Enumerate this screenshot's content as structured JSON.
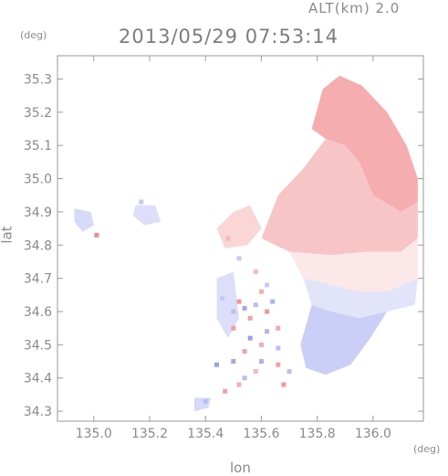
{
  "header": {
    "altitude_label": "ALT(km) 2.0",
    "datetime": "2013/05/29 07:53:14"
  },
  "chart_data": {
    "type": "heatmap",
    "title": "2013/05/29 07:53:14",
    "subtitle": "ALT(km) 2.0",
    "xlabel": "lon",
    "ylabel": "lat",
    "x_unit": "(deg)",
    "y_unit": "(deg)",
    "xlim": [
      134.87,
      136.18
    ],
    "ylim": [
      34.27,
      35.37
    ],
    "x_ticks": [
      135.0,
      135.2,
      135.4,
      135.6,
      135.8,
      136.0
    ],
    "x_tick_labels": [
      "135.0",
      "135.2",
      "135.4",
      "135.6",
      "135.8",
      "136.0"
    ],
    "y_ticks": [
      34.3,
      34.4,
      34.5,
      34.6,
      34.7,
      34.8,
      34.9,
      35.0,
      35.1,
      35.2,
      35.3
    ],
    "y_tick_labels": [
      "34.3",
      "34.4",
      "34.5",
      "34.6",
      "34.7",
      "34.8",
      "34.9",
      "35.0",
      "35.1",
      "35.2",
      "35.3"
    ],
    "grid": false,
    "colors": {
      "toward": "#f08a8e",
      "away": "#8c92ea",
      "frame": "#9a9a9a"
    },
    "regions": [
      {
        "sign": "positive",
        "intensity": 0.7,
        "polygon": [
          [
            135.78,
            35.15
          ],
          [
            135.82,
            35.27
          ],
          [
            135.88,
            35.31
          ],
          [
            135.96,
            35.28
          ],
          [
            136.05,
            35.2
          ],
          [
            136.12,
            35.1
          ],
          [
            136.16,
            35.0
          ],
          [
            136.16,
            34.93
          ],
          [
            136.1,
            34.9
          ],
          [
            136.0,
            34.95
          ],
          [
            135.95,
            35.05
          ],
          [
            135.9,
            35.1
          ],
          [
            135.83,
            35.12
          ]
        ]
      },
      {
        "sign": "positive",
        "intensity": 0.5,
        "polygon": [
          [
            135.6,
            34.82
          ],
          [
            135.66,
            34.95
          ],
          [
            135.75,
            35.03
          ],
          [
            135.83,
            35.12
          ],
          [
            135.9,
            35.1
          ],
          [
            135.95,
            35.05
          ],
          [
            136.0,
            34.95
          ],
          [
            136.1,
            34.9
          ],
          [
            136.16,
            34.93
          ],
          [
            136.16,
            34.82
          ],
          [
            136.1,
            34.78
          ],
          [
            135.98,
            34.78
          ],
          [
            135.85,
            34.77
          ],
          [
            135.7,
            34.78
          ]
        ]
      },
      {
        "sign": "positive",
        "intensity": 0.2,
        "polygon": [
          [
            135.7,
            34.78
          ],
          [
            135.85,
            34.77
          ],
          [
            135.98,
            34.78
          ],
          [
            136.1,
            34.78
          ],
          [
            136.16,
            34.82
          ],
          [
            136.16,
            34.7
          ],
          [
            136.05,
            34.66
          ],
          [
            135.95,
            34.66
          ],
          [
            135.85,
            34.68
          ],
          [
            135.75,
            34.7
          ]
        ]
      },
      {
        "sign": "negative",
        "intensity": 0.25,
        "polygon": [
          [
            135.75,
            34.7
          ],
          [
            135.85,
            34.68
          ],
          [
            135.95,
            34.66
          ],
          [
            136.05,
            34.66
          ],
          [
            136.16,
            34.7
          ],
          [
            136.15,
            34.62
          ],
          [
            136.05,
            34.6
          ],
          [
            135.95,
            34.58
          ],
          [
            135.85,
            34.6
          ],
          [
            135.78,
            34.62
          ]
        ]
      },
      {
        "sign": "negative",
        "intensity": 0.45,
        "polygon": [
          [
            135.78,
            34.62
          ],
          [
            135.85,
            34.6
          ],
          [
            135.95,
            34.58
          ],
          [
            136.05,
            34.6
          ],
          [
            135.99,
            34.52
          ],
          [
            135.92,
            34.44
          ],
          [
            135.83,
            34.41
          ],
          [
            135.76,
            34.43
          ],
          [
            135.74,
            34.5
          ]
        ]
      },
      {
        "sign": "positive",
        "intensity": 0.35,
        "polygon": [
          [
            135.44,
            34.85
          ],
          [
            135.5,
            34.9
          ],
          [
            135.56,
            34.92
          ],
          [
            135.6,
            34.85
          ],
          [
            135.55,
            34.8
          ],
          [
            135.47,
            34.79
          ]
        ]
      },
      {
        "sign": "negative",
        "intensity": 0.35,
        "polygon": [
          [
            134.93,
            34.91
          ],
          [
            134.99,
            34.9
          ],
          [
            135.0,
            34.86
          ],
          [
            134.96,
            34.84
          ],
          [
            134.93,
            34.87
          ]
        ]
      },
      {
        "sign": "negative",
        "intensity": 0.3,
        "polygon": [
          [
            135.15,
            34.92
          ],
          [
            135.22,
            34.92
          ],
          [
            135.24,
            34.87
          ],
          [
            135.18,
            34.86
          ],
          [
            135.14,
            34.89
          ]
        ]
      },
      {
        "sign": "negative",
        "intensity": 0.35,
        "polygon": [
          [
            135.36,
            34.34
          ],
          [
            135.42,
            34.34
          ],
          [
            135.41,
            34.31
          ],
          [
            135.36,
            34.3
          ]
        ]
      },
      {
        "sign": "negative",
        "intensity": 0.3,
        "polygon": [
          [
            135.44,
            34.7
          ],
          [
            135.5,
            34.72
          ],
          [
            135.52,
            34.58
          ],
          [
            135.48,
            34.52
          ],
          [
            135.44,
            34.58
          ]
        ]
      }
    ],
    "gates": [
      {
        "lon": 135.52,
        "lat": 34.63,
        "value": 0.9
      },
      {
        "lon": 135.56,
        "lat": 34.58,
        "value": 0.8
      },
      {
        "lon": 135.6,
        "lat": 34.66,
        "value": 0.7
      },
      {
        "lon": 135.5,
        "lat": 34.55,
        "value": 0.85
      },
      {
        "lon": 135.62,
        "lat": 34.6,
        "value": 0.9
      },
      {
        "lon": 135.66,
        "lat": 34.55,
        "value": 0.75
      },
      {
        "lon": 135.54,
        "lat": 34.48,
        "value": 0.8
      },
      {
        "lon": 135.6,
        "lat": 34.5,
        "value": 0.7
      },
      {
        "lon": 135.66,
        "lat": 34.44,
        "value": 0.8
      },
      {
        "lon": 135.58,
        "lat": 34.42,
        "value": 0.6
      },
      {
        "lon": 135.68,
        "lat": 34.38,
        "value": 0.9
      },
      {
        "lon": 135.52,
        "lat": 34.38,
        "value": 0.7
      },
      {
        "lon": 135.47,
        "lat": 34.36,
        "value": 0.8
      },
      {
        "lon": 135.01,
        "lat": 34.83,
        "value": 1.0
      },
      {
        "lon": 135.58,
        "lat": 34.72,
        "value": 0.6
      },
      {
        "lon": 135.48,
        "lat": 34.82,
        "value": 0.6
      },
      {
        "lon": 135.54,
        "lat": 34.61,
        "value": -0.8
      },
      {
        "lon": 135.58,
        "lat": 34.62,
        "value": -0.6
      },
      {
        "lon": 135.64,
        "lat": 34.63,
        "value": -0.7
      },
      {
        "lon": 135.5,
        "lat": 34.6,
        "value": -0.6
      },
      {
        "lon": 135.56,
        "lat": 34.52,
        "value": -0.9
      },
      {
        "lon": 135.62,
        "lat": 34.54,
        "value": -0.7
      },
      {
        "lon": 135.66,
        "lat": 34.49,
        "value": -0.6
      },
      {
        "lon": 135.5,
        "lat": 34.45,
        "value": -0.8
      },
      {
        "lon": 135.6,
        "lat": 34.45,
        "value": -0.7
      },
      {
        "lon": 135.7,
        "lat": 34.42,
        "value": -0.6
      },
      {
        "lon": 135.44,
        "lat": 34.44,
        "value": -0.9
      },
      {
        "lon": 135.54,
        "lat": 34.4,
        "value": -0.6
      },
      {
        "lon": 135.46,
        "lat": 34.64,
        "value": -0.5
      },
      {
        "lon": 135.62,
        "lat": 34.68,
        "value": -0.5
      },
      {
        "lon": 135.52,
        "lat": 34.76,
        "value": -0.5
      },
      {
        "lon": 135.4,
        "lat": 34.33,
        "value": -0.6
      },
      {
        "lon": 135.17,
        "lat": 34.93,
        "value": -0.5
      }
    ]
  }
}
